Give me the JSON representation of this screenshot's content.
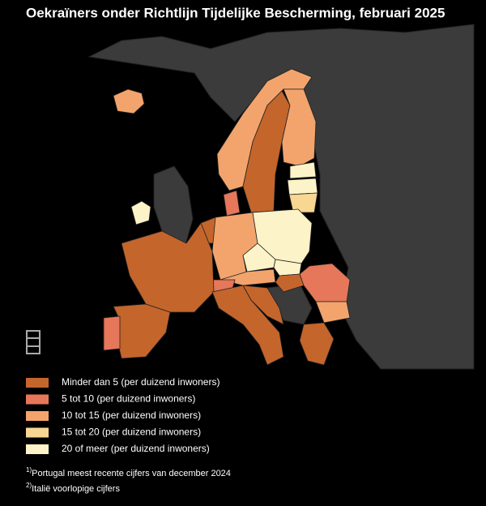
{
  "title": "Oekraïners onder Richtlijn Tijdelijke Bescherming, februari 2025",
  "legend": [
    {
      "label": "Minder dan 5 (per duizend inwoners)",
      "color": "#c4652c"
    },
    {
      "label": "5 tot 10 (per duizend inwoners)",
      "color": "#e6775a"
    },
    {
      "label": "10 tot 15 (per duizend inwoners)",
      "color": "#f3a46c"
    },
    {
      "label": "15 tot 20 (per duizend inwoners)",
      "color": "#f8d792"
    },
    {
      "label": "20 of meer (per duizend inwoners)",
      "color": "#fdf3c9"
    }
  ],
  "footnotes": [
    {
      "mark": "1)",
      "text": "Portugal meest recente cijfers van december 2024"
    },
    {
      "mark": "2)",
      "text": "Italië voorlopige cijfers"
    }
  ]
}
